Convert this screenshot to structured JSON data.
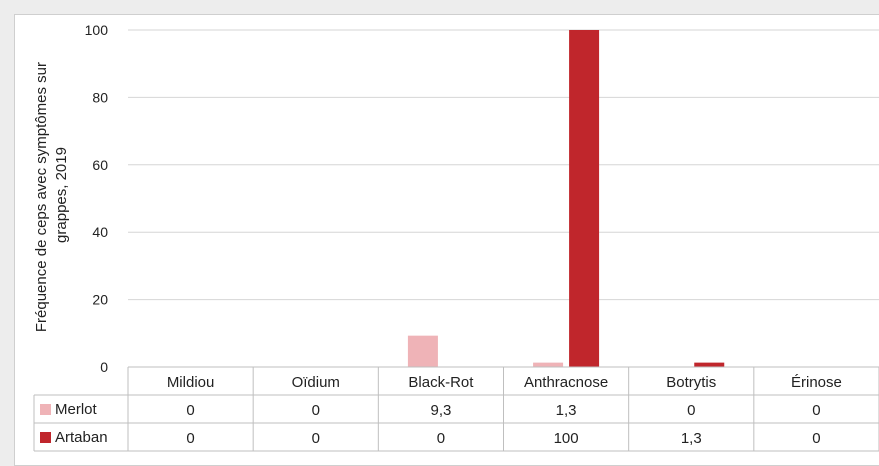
{
  "chart_data": {
    "type": "bar",
    "title": "",
    "ylabel": "Fréquence de ceps avec symptômes sur grappes, 2019",
    "ylabel_lines": [
      "Fréquence de ceps avec symptômes sur",
      "grappes, 2019"
    ],
    "ylim": [
      0,
      100
    ],
    "yticks": [
      "0",
      "20",
      "40",
      "60",
      "80",
      "100"
    ],
    "grid": true,
    "legend": "data-table",
    "categories": [
      "Mildiou",
      "Oïdium",
      "Black-Rot",
      "Anthracnose",
      "Botrytis",
      "Érinose"
    ],
    "series": [
      {
        "name": "Merlot",
        "color": "#efb3b7",
        "values": [
          0,
          0,
          9.3,
          1.3,
          0,
          0
        ],
        "labels": [
          "0",
          "0",
          "9,3",
          "1,3",
          "0",
          "0"
        ]
      },
      {
        "name": "Artaban",
        "color": "#c0262c",
        "values": [
          0,
          0,
          0,
          100,
          1.3,
          0
        ],
        "labels": [
          "0",
          "0",
          "0",
          "100",
          "1,3",
          "0"
        ]
      }
    ]
  }
}
